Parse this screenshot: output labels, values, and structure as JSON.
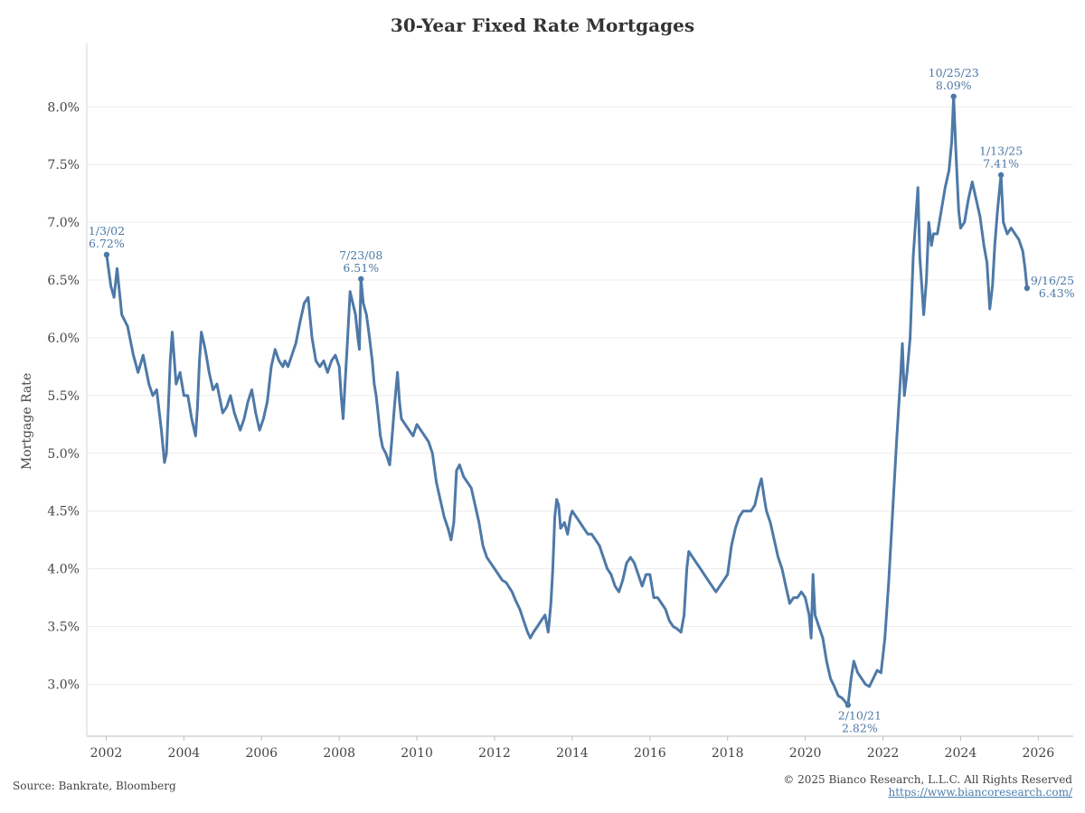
{
  "chart_data": {
    "type": "line",
    "title": "30-Year Fixed Rate Mortgages",
    "xlabel": "",
    "ylabel": "Mortgage Rate",
    "xlim": [
      2001.5,
      2026.9
    ],
    "ylim": [
      2.55,
      8.55
    ],
    "x_ticks": [
      2002,
      2004,
      2006,
      2008,
      2010,
      2012,
      2014,
      2016,
      2018,
      2020,
      2022,
      2024,
      2026
    ],
    "x_tick_labels": [
      "2002",
      "2004",
      "2006",
      "2008",
      "2010",
      "2012",
      "2014",
      "2016",
      "2018",
      "2020",
      "2022",
      "2024",
      "2026"
    ],
    "y_ticks": [
      3.0,
      3.5,
      4.0,
      4.5,
      5.0,
      5.5,
      6.0,
      6.5,
      7.0,
      7.5,
      8.0
    ],
    "y_tick_labels": [
      "3.0%",
      "3.5%",
      "4.0%",
      "4.5%",
      "5.0%",
      "5.5%",
      "6.0%",
      "6.5%",
      "7.0%",
      "7.5%",
      "8.0%"
    ],
    "grid": "horizontal",
    "line_color": "#4e79a7",
    "series": [
      {
        "values": [
          [
            2002.01,
            6.72
          ],
          [
            2002.12,
            6.45
          ],
          [
            2002.2,
            6.35
          ],
          [
            2002.28,
            6.6
          ],
          [
            2002.4,
            6.2
          ],
          [
            2002.55,
            6.1
          ],
          [
            2002.7,
            5.85
          ],
          [
            2002.82,
            5.7
          ],
          [
            2002.95,
            5.85
          ],
          [
            2003.1,
            5.6
          ],
          [
            2003.2,
            5.5
          ],
          [
            2003.3,
            5.55
          ],
          [
            2003.42,
            5.2
          ],
          [
            2003.5,
            4.92
          ],
          [
            2003.55,
            5.0
          ],
          [
            2003.65,
            5.8
          ],
          [
            2003.7,
            6.05
          ],
          [
            2003.8,
            5.6
          ],
          [
            2003.9,
            5.7
          ],
          [
            2004.0,
            5.5
          ],
          [
            2004.1,
            5.5
          ],
          [
            2004.2,
            5.3
          ],
          [
            2004.3,
            5.15
          ],
          [
            2004.35,
            5.4
          ],
          [
            2004.4,
            5.8
          ],
          [
            2004.45,
            6.05
          ],
          [
            2004.55,
            5.9
          ],
          [
            2004.65,
            5.7
          ],
          [
            2004.75,
            5.55
          ],
          [
            2004.85,
            5.6
          ],
          [
            2005.0,
            5.35
          ],
          [
            2005.1,
            5.4
          ],
          [
            2005.2,
            5.5
          ],
          [
            2005.3,
            5.35
          ],
          [
            2005.45,
            5.2
          ],
          [
            2005.55,
            5.3
          ],
          [
            2005.65,
            5.45
          ],
          [
            2005.75,
            5.55
          ],
          [
            2005.85,
            5.35
          ],
          [
            2005.95,
            5.2
          ],
          [
            2006.05,
            5.3
          ],
          [
            2006.15,
            5.45
          ],
          [
            2006.25,
            5.75
          ],
          [
            2006.35,
            5.9
          ],
          [
            2006.45,
            5.8
          ],
          [
            2006.55,
            5.75
          ],
          [
            2006.6,
            5.8
          ],
          [
            2006.68,
            5.75
          ],
          [
            2006.78,
            5.85
          ],
          [
            2006.88,
            5.95
          ],
          [
            2007.0,
            6.15
          ],
          [
            2007.1,
            6.3
          ],
          [
            2007.2,
            6.35
          ],
          [
            2007.3,
            6.0
          ],
          [
            2007.4,
            5.8
          ],
          [
            2007.5,
            5.75
          ],
          [
            2007.6,
            5.8
          ],
          [
            2007.7,
            5.7
          ],
          [
            2007.8,
            5.8
          ],
          [
            2007.9,
            5.85
          ],
          [
            2008.0,
            5.75
          ],
          [
            2008.05,
            5.5
          ],
          [
            2008.1,
            5.3
          ],
          [
            2008.15,
            5.6
          ],
          [
            2008.2,
            5.9
          ],
          [
            2008.28,
            6.4
          ],
          [
            2008.35,
            6.3
          ],
          [
            2008.42,
            6.2
          ],
          [
            2008.48,
            6.0
          ],
          [
            2008.52,
            5.9
          ],
          [
            2008.56,
            6.51
          ],
          [
            2008.62,
            6.3
          ],
          [
            2008.7,
            6.2
          ],
          [
            2008.78,
            6.0
          ],
          [
            2008.85,
            5.8
          ],
          [
            2008.9,
            5.6
          ],
          [
            2008.95,
            5.5
          ],
          [
            2009.0,
            5.35
          ],
          [
            2009.06,
            5.15
          ],
          [
            2009.12,
            5.05
          ],
          [
            2009.2,
            5.0
          ],
          [
            2009.3,
            4.9
          ],
          [
            2009.35,
            5.1
          ],
          [
            2009.42,
            5.4
          ],
          [
            2009.5,
            5.7
          ],
          [
            2009.55,
            5.45
          ],
          [
            2009.6,
            5.3
          ],
          [
            2009.7,
            5.25
          ],
          [
            2009.8,
            5.2
          ],
          [
            2009.9,
            5.15
          ],
          [
            2010.0,
            5.25
          ],
          [
            2010.1,
            5.2
          ],
          [
            2010.2,
            5.15
          ],
          [
            2010.3,
            5.1
          ],
          [
            2010.4,
            5.0
          ],
          [
            2010.5,
            4.75
          ],
          [
            2010.6,
            4.6
          ],
          [
            2010.7,
            4.45
          ],
          [
            2010.8,
            4.35
          ],
          [
            2010.88,
            4.25
          ],
          [
            2010.95,
            4.4
          ],
          [
            2011.02,
            4.85
          ],
          [
            2011.1,
            4.9
          ],
          [
            2011.2,
            4.8
          ],
          [
            2011.3,
            4.75
          ],
          [
            2011.4,
            4.7
          ],
          [
            2011.5,
            4.55
          ],
          [
            2011.6,
            4.4
          ],
          [
            2011.7,
            4.2
          ],
          [
            2011.8,
            4.1
          ],
          [
            2011.9,
            4.05
          ],
          [
            2012.0,
            4.0
          ],
          [
            2012.1,
            3.95
          ],
          [
            2012.2,
            3.9
          ],
          [
            2012.3,
            3.88
          ],
          [
            2012.45,
            3.8
          ],
          [
            2012.55,
            3.72
          ],
          [
            2012.65,
            3.65
          ],
          [
            2012.75,
            3.55
          ],
          [
            2012.85,
            3.45
          ],
          [
            2012.92,
            3.4
          ],
          [
            2013.0,
            3.45
          ],
          [
            2013.1,
            3.5
          ],
          [
            2013.2,
            3.55
          ],
          [
            2013.3,
            3.6
          ],
          [
            2013.38,
            3.45
          ],
          [
            2013.45,
            3.7
          ],
          [
            2013.5,
            4.0
          ],
          [
            2013.55,
            4.45
          ],
          [
            2013.6,
            4.6
          ],
          [
            2013.65,
            4.55
          ],
          [
            2013.7,
            4.35
          ],
          [
            2013.8,
            4.4
          ],
          [
            2013.88,
            4.3
          ],
          [
            2013.95,
            4.45
          ],
          [
            2014.0,
            4.5
          ],
          [
            2014.1,
            4.45
          ],
          [
            2014.2,
            4.4
          ],
          [
            2014.3,
            4.35
          ],
          [
            2014.4,
            4.3
          ],
          [
            2014.5,
            4.3
          ],
          [
            2014.6,
            4.25
          ],
          [
            2014.7,
            4.2
          ],
          [
            2014.8,
            4.1
          ],
          [
            2014.9,
            4.0
          ],
          [
            2015.0,
            3.95
          ],
          [
            2015.1,
            3.85
          ],
          [
            2015.2,
            3.8
          ],
          [
            2015.3,
            3.9
          ],
          [
            2015.4,
            4.05
          ],
          [
            2015.5,
            4.1
          ],
          [
            2015.6,
            4.05
          ],
          [
            2015.7,
            3.95
          ],
          [
            2015.8,
            3.85
          ],
          [
            2015.9,
            3.95
          ],
          [
            2016.0,
            3.95
          ],
          [
            2016.1,
            3.75
          ],
          [
            2016.2,
            3.75
          ],
          [
            2016.3,
            3.7
          ],
          [
            2016.4,
            3.65
          ],
          [
            2016.5,
            3.55
          ],
          [
            2016.6,
            3.5
          ],
          [
            2016.7,
            3.48
          ],
          [
            2016.8,
            3.45
          ],
          [
            2016.88,
            3.6
          ],
          [
            2016.95,
            4.0
          ],
          [
            2017.0,
            4.15
          ],
          [
            2017.1,
            4.1
          ],
          [
            2017.2,
            4.05
          ],
          [
            2017.3,
            4.0
          ],
          [
            2017.4,
            3.95
          ],
          [
            2017.5,
            3.9
          ],
          [
            2017.6,
            3.85
          ],
          [
            2017.7,
            3.8
          ],
          [
            2017.8,
            3.85
          ],
          [
            2017.9,
            3.9
          ],
          [
            2018.0,
            3.95
          ],
          [
            2018.1,
            4.2
          ],
          [
            2018.2,
            4.35
          ],
          [
            2018.3,
            4.45
          ],
          [
            2018.4,
            4.5
          ],
          [
            2018.5,
            4.5
          ],
          [
            2018.6,
            4.5
          ],
          [
            2018.7,
            4.55
          ],
          [
            2018.8,
            4.7
          ],
          [
            2018.87,
            4.78
          ],
          [
            2018.95,
            4.6
          ],
          [
            2019.0,
            4.5
          ],
          [
            2019.1,
            4.4
          ],
          [
            2019.2,
            4.25
          ],
          [
            2019.3,
            4.1
          ],
          [
            2019.4,
            4.0
          ],
          [
            2019.5,
            3.85
          ],
          [
            2019.6,
            3.7
          ],
          [
            2019.7,
            3.75
          ],
          [
            2019.8,
            3.75
          ],
          [
            2019.9,
            3.8
          ],
          [
            2020.0,
            3.75
          ],
          [
            2020.1,
            3.6
          ],
          [
            2020.15,
            3.4
          ],
          [
            2020.2,
            3.95
          ],
          [
            2020.25,
            3.6
          ],
          [
            2020.35,
            3.5
          ],
          [
            2020.45,
            3.4
          ],
          [
            2020.55,
            3.2
          ],
          [
            2020.65,
            3.05
          ],
          [
            2020.75,
            2.98
          ],
          [
            2020.85,
            2.9
          ],
          [
            2020.95,
            2.88
          ],
          [
            2021.1,
            2.82
          ],
          [
            2021.18,
            3.05
          ],
          [
            2021.25,
            3.2
          ],
          [
            2021.35,
            3.1
          ],
          [
            2021.45,
            3.05
          ],
          [
            2021.55,
            3.0
          ],
          [
            2021.65,
            2.98
          ],
          [
            2021.75,
            3.05
          ],
          [
            2021.85,
            3.12
          ],
          [
            2021.95,
            3.1
          ],
          [
            2022.05,
            3.4
          ],
          [
            2022.15,
            3.9
          ],
          [
            2022.25,
            4.5
          ],
          [
            2022.35,
            5.1
          ],
          [
            2022.45,
            5.65
          ],
          [
            2022.5,
            5.95
          ],
          [
            2022.55,
            5.5
          ],
          [
            2022.62,
            5.7
          ],
          [
            2022.7,
            6.0
          ],
          [
            2022.78,
            6.7
          ],
          [
            2022.85,
            7.05
          ],
          [
            2022.9,
            7.3
          ],
          [
            2022.95,
            6.7
          ],
          [
            2023.0,
            6.45
          ],
          [
            2023.05,
            6.2
          ],
          [
            2023.12,
            6.5
          ],
          [
            2023.18,
            7.0
          ],
          [
            2023.25,
            6.8
          ],
          [
            2023.3,
            6.9
          ],
          [
            2023.4,
            6.9
          ],
          [
            2023.5,
            7.1
          ],
          [
            2023.6,
            7.3
          ],
          [
            2023.7,
            7.45
          ],
          [
            2023.77,
            7.7
          ],
          [
            2023.82,
            8.09
          ],
          [
            2023.88,
            7.6
          ],
          [
            2023.95,
            7.1
          ],
          [
            2024.0,
            6.95
          ],
          [
            2024.1,
            7.0
          ],
          [
            2024.2,
            7.2
          ],
          [
            2024.3,
            7.35
          ],
          [
            2024.4,
            7.2
          ],
          [
            2024.5,
            7.05
          ],
          [
            2024.6,
            6.8
          ],
          [
            2024.68,
            6.65
          ],
          [
            2024.75,
            6.25
          ],
          [
            2024.82,
            6.45
          ],
          [
            2024.88,
            6.8
          ],
          [
            2024.95,
            7.1
          ],
          [
            2025.04,
            7.41
          ],
          [
            2025.1,
            7.0
          ],
          [
            2025.2,
            6.9
          ],
          [
            2025.3,
            6.95
          ],
          [
            2025.4,
            6.9
          ],
          [
            2025.5,
            6.85
          ],
          [
            2025.6,
            6.75
          ],
          [
            2025.66,
            6.6
          ],
          [
            2025.71,
            6.43
          ]
        ]
      }
    ],
    "annotations": [
      {
        "date": "1/3/02",
        "value_label": "6.72%",
        "x": 2002.01,
        "y": 6.72,
        "position": "above"
      },
      {
        "date": "7/23/08",
        "value_label": "6.51%",
        "x": 2008.56,
        "y": 6.51,
        "position": "above"
      },
      {
        "date": "2/10/21",
        "value_label": "2.82%",
        "x": 2021.1,
        "y": 2.82,
        "position": "below"
      },
      {
        "date": "10/25/23",
        "value_label": "8.09%",
        "x": 2023.82,
        "y": 8.09,
        "position": "above"
      },
      {
        "date": "1/13/25",
        "value_label": "7.41%",
        "x": 2025.04,
        "y": 7.41,
        "position": "above"
      },
      {
        "date": "9/16/25",
        "value_label": "6.43%",
        "x": 2025.71,
        "y": 6.43,
        "position": "right"
      }
    ]
  },
  "footer": {
    "source": "Source: Bankrate, Bloomberg",
    "copyright": "© 2025 Bianco Research, L.L.C. All Rights Reserved",
    "url": "https://www.biancoresearch.com/"
  }
}
